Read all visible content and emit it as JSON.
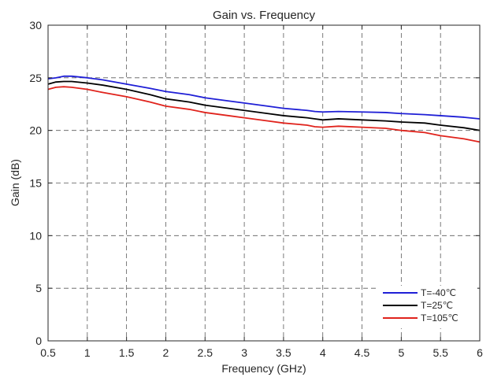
{
  "chart_data": {
    "type": "line",
    "title": "Gain vs. Frequency",
    "xlabel": "Frequency (GHz)",
    "ylabel": "Gain (dB)",
    "xlim": [
      0.5,
      6
    ],
    "ylim": [
      0,
      30
    ],
    "xticks": [
      0.5,
      1,
      1.5,
      2,
      2.5,
      3,
      3.5,
      4,
      4.5,
      5,
      5.5,
      6
    ],
    "xtick_labels": [
      "0.5",
      "1",
      "1.5",
      "2",
      "2.5",
      "3",
      "3.5",
      "4",
      "4.5",
      "5",
      "5.5",
      "6"
    ],
    "yticks": [
      0,
      5,
      10,
      15,
      20,
      25,
      30
    ],
    "ytick_labels": [
      "0",
      "5",
      "10",
      "15",
      "20",
      "25",
      "30"
    ],
    "grid": true,
    "legend_position": "bottom-right",
    "x": [
      0.5,
      0.6,
      0.7,
      0.8,
      1.0,
      1.2,
      1.5,
      1.8,
      2.0,
      2.3,
      2.5,
      2.8,
      3.0,
      3.3,
      3.5,
      3.8,
      3.9,
      4.0,
      4.2,
      4.5,
      4.8,
      5.0,
      5.3,
      5.5,
      5.8,
      6.0
    ],
    "series": [
      {
        "name": "T=-40℃",
        "color": "#1f1fd6",
        "values": [
          24.9,
          25.0,
          25.15,
          25.15,
          25.0,
          24.8,
          24.4,
          24.0,
          23.7,
          23.4,
          23.1,
          22.8,
          22.6,
          22.3,
          22.1,
          21.9,
          21.8,
          21.75,
          21.8,
          21.75,
          21.7,
          21.6,
          21.5,
          21.4,
          21.25,
          21.1
        ]
      },
      {
        "name": "T=25℃",
        "color": "#000000",
        "values": [
          24.4,
          24.6,
          24.65,
          24.65,
          24.5,
          24.3,
          23.9,
          23.4,
          23.0,
          22.7,
          22.4,
          22.1,
          21.9,
          21.6,
          21.4,
          21.2,
          21.1,
          21.0,
          21.1,
          21.0,
          20.9,
          20.8,
          20.7,
          20.5,
          20.25,
          20.0
        ]
      },
      {
        "name": "T=105℃",
        "color": "#e0231c",
        "values": [
          23.9,
          24.1,
          24.15,
          24.1,
          23.9,
          23.6,
          23.2,
          22.7,
          22.3,
          22.0,
          21.7,
          21.4,
          21.2,
          20.9,
          20.7,
          20.5,
          20.35,
          20.3,
          20.4,
          20.3,
          20.2,
          20.0,
          19.8,
          19.5,
          19.2,
          18.9
        ]
      }
    ]
  }
}
